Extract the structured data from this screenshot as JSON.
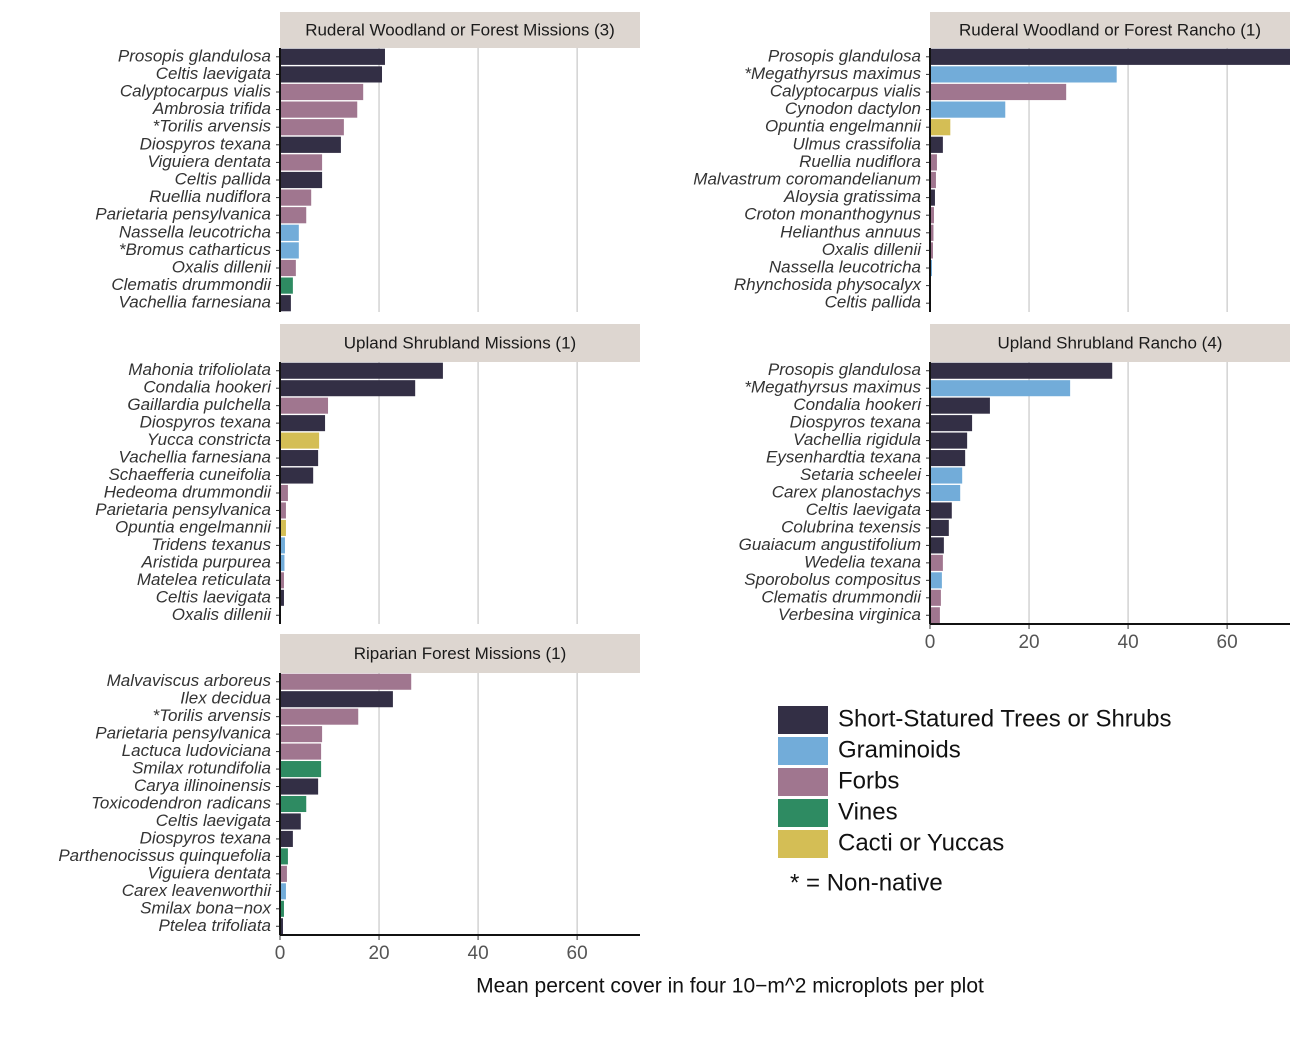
{
  "chart_data": [
    {
      "type": "bar",
      "title": "Ruderal Woodland or Forest Missions (3)",
      "categories": [
        "Prosopis glandulosa",
        "Celtis laevigata",
        "Calyptocarpus vialis",
        "Ambrosia trifida",
        "*Torilis arvensis",
        "Diospyros texana",
        "Viguiera dentata",
        "Celtis pallida",
        "Ruellia nudiflora",
        "Parietaria pensylvanica",
        "Nassella leucotricha",
        "*Bromus catharticus",
        "Oxalis dillenii",
        "Clematis drummondii",
        "Vachellia farnesiana"
      ],
      "values": [
        21.2,
        20.6,
        16.8,
        15.6,
        12.9,
        12.3,
        8.5,
        8.5,
        6.3,
        5.3,
        3.8,
        3.8,
        3.2,
        2.6,
        2.2
      ],
      "colors": [
        "#332f45",
        "#332f45",
        "#a0768f",
        "#a0768f",
        "#a0768f",
        "#332f45",
        "#a0768f",
        "#332f45",
        "#a0768f",
        "#a0768f",
        "#72acd9",
        "#72acd9",
        "#a0768f",
        "#2e8b62",
        "#332f45"
      ],
      "xlim": [
        0,
        72.7
      ],
      "xticks": [
        0,
        20,
        40,
        60
      ],
      "x_tick_labels": false
    },
    {
      "type": "bar",
      "title": "Ruderal Woodland or Forest Rancho (1)",
      "categories": [
        "Prosopis glandulosa",
        "*Megathyrsus maximus",
        "Calyptocarpus vialis",
        "Cynodon dactylon",
        "Opuntia engelmannii",
        "Ulmus crassifolia",
        "Ruellia nudiflora",
        "Malvastrum coromandelianum",
        "Aloysia gratissima",
        "Croton monanthogynus",
        "Helianthus annuus",
        "Oxalis dillenii",
        "Nassella leucotricha",
        "Rhynchosida physocalyx",
        "Celtis pallida"
      ],
      "values": [
        75,
        37.7,
        27.5,
        15.2,
        4.1,
        2.6,
        1.4,
        1.2,
        1.0,
        0.8,
        0.7,
        0.6,
        0.4,
        0.2,
        0.2
      ],
      "colors": [
        "#332f45",
        "#72acd9",
        "#a0768f",
        "#72acd9",
        "#d4be55",
        "#332f45",
        "#a0768f",
        "#a0768f",
        "#332f45",
        "#a0768f",
        "#a0768f",
        "#a0768f",
        "#72acd9",
        "#a0768f",
        "#332f45"
      ],
      "xlim": [
        0,
        72.7
      ],
      "xticks": [
        0,
        20,
        40,
        60
      ],
      "x_tick_labels": false
    },
    {
      "type": "bar",
      "title": "Upland Shrubland Missions (1)",
      "categories": [
        "Mahonia trifoliolata",
        "Condalia hookeri",
        "Gaillardia pulchella",
        "Diospyros texana",
        "Yucca constricta",
        "Vachellia farnesiana",
        "Schaefferia cuneifolia",
        "Hedeoma drummondii",
        "Parietaria pensylvanica",
        "Opuntia engelmannii",
        "Tridens texanus",
        "Aristida purpurea",
        "Matelea reticulata",
        "Celtis laevigata",
        "Oxalis dillenii"
      ],
      "values": [
        32.9,
        27.3,
        9.7,
        9.1,
        7.9,
        7.7,
        6.7,
        1.6,
        1.2,
        1.2,
        1.0,
        0.9,
        0.8,
        0.8,
        0.2
      ],
      "colors": [
        "#332f45",
        "#332f45",
        "#a0768f",
        "#332f45",
        "#d4be55",
        "#332f45",
        "#332f45",
        "#a0768f",
        "#a0768f",
        "#d4be55",
        "#72acd9",
        "#72acd9",
        "#a0768f",
        "#332f45",
        "#a0768f"
      ],
      "xlim": [
        0,
        72.7
      ],
      "xticks": [
        0,
        20,
        40,
        60
      ],
      "x_tick_labels": false
    },
    {
      "type": "bar",
      "title": "Upland Shrubland Rancho (4)",
      "categories": [
        "Prosopis glandulosa",
        "*Megathyrsus maximus",
        "Condalia hookeri",
        "Diospyros texana",
        "Vachellia rigidula",
        "Eysenhardtia texana",
        "Setaria scheelei",
        "Carex planostachys",
        "Celtis laevigata",
        "Colubrina texensis",
        "Guaiacum angustifolium",
        "Wedelia texana",
        "Sporobolus compositus",
        "Clematis drummondii",
        "Verbesina virginica"
      ],
      "values": [
        36.8,
        28.3,
        12.1,
        8.5,
        7.5,
        7.1,
        6.5,
        6.1,
        4.4,
        3.8,
        2.8,
        2.6,
        2.4,
        2.2,
        2.0
      ],
      "colors": [
        "#332f45",
        "#72acd9",
        "#332f45",
        "#332f45",
        "#332f45",
        "#332f45",
        "#72acd9",
        "#72acd9",
        "#332f45",
        "#332f45",
        "#332f45",
        "#a0768f",
        "#72acd9",
        "#a0768f",
        "#a0768f"
      ],
      "xlim": [
        0,
        72.7
      ],
      "xticks": [
        0,
        20,
        40,
        60
      ],
      "x_tick_labels": true
    },
    {
      "type": "bar",
      "title": "Riparian Forest Missions (1)",
      "categories": [
        "Malvaviscus arboreus",
        "Ilex decidua",
        "*Torilis arvensis",
        "Parietaria pensylvanica",
        "Lactuca ludoviciana",
        "Smilax rotundifolia",
        "Carya illinoinensis",
        "Toxicodendron radicans",
        "Celtis laevigata",
        "Diospyros texana",
        "Parthenocissus quinquefolia",
        "Viguiera dentata",
        "Carex leavenworthii",
        "Smilax bona−nox",
        "Ptelea trifoliata"
      ],
      "values": [
        26.5,
        22.8,
        15.8,
        8.5,
        8.3,
        8.3,
        7.7,
        5.3,
        4.2,
        2.6,
        1.6,
        1.4,
        1.2,
        0.8,
        0.6
      ],
      "colors": [
        "#a0768f",
        "#332f45",
        "#a0768f",
        "#a0768f",
        "#a0768f",
        "#2e8b62",
        "#332f45",
        "#2e8b62",
        "#332f45",
        "#332f45",
        "#2e8b62",
        "#a0768f",
        "#72acd9",
        "#2e8b62",
        "#332f45"
      ],
      "xlim": [
        0,
        72.7
      ],
      "xticks": [
        0,
        20,
        40,
        60
      ],
      "x_tick_labels": true
    }
  ],
  "xlabel": "Mean percent cover in four 10−m^2 microplots per plot",
  "legend": [
    {
      "name": "Short-Statured Trees or Shrubs",
      "color": "#332f45"
    },
    {
      "name": "Graminoids",
      "color": "#72acd9"
    },
    {
      "name": "Forbs",
      "color": "#a0768f"
    },
    {
      "name": "Vines",
      "color": "#2e8b62"
    },
    {
      "name": "Cacti or Yuccas",
      "color": "#d4be55"
    }
  ],
  "legend_note": "* = Non-native"
}
